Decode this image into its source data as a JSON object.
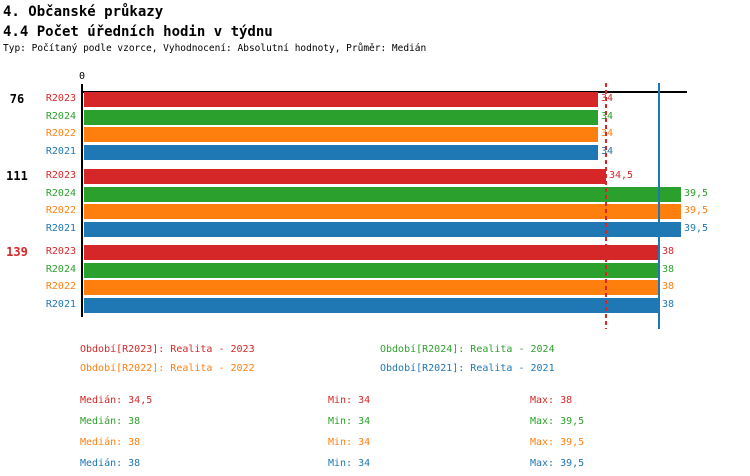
{
  "header": {
    "title1": "4. Občanské průkazy",
    "title2": "4.4 Počet úředních hodin v týdnu",
    "subtitle": "Typ: Počítaný podle vzorce, Vyhodnocení: Absolutní hodnoty, Průměr: Medián"
  },
  "colors": {
    "R2023": "#d62728",
    "R2024": "#2ca02c",
    "R2022": "#ff7f0e",
    "R2021": "#1f77b4",
    "axis": "#000000"
  },
  "chart_data": {
    "type": "bar",
    "orientation": "horizontal",
    "title": "4.4 Počet úředních hodin v týdnu",
    "xlabel": "",
    "ylabel": "",
    "xlim": [
      0,
      40
    ],
    "axis_zero_label": "0",
    "grid": false,
    "series_order": [
      "R2023",
      "R2024",
      "R2022",
      "R2021"
    ],
    "groups": [
      {
        "label": "76",
        "highlighted": false,
        "values": {
          "R2023": 34,
          "R2024": 34,
          "R2022": 34,
          "R2021": 34
        }
      },
      {
        "label": "111",
        "highlighted": false,
        "values": {
          "R2023": 34.5,
          "R2024": 39.5,
          "R2022": 39.5,
          "R2021": 39.5
        }
      },
      {
        "label": "139",
        "highlighted": true,
        "values": {
          "R2023": 38,
          "R2024": 38,
          "R2022": 38,
          "R2021": 38
        }
      }
    ],
    "median_lines": [
      {
        "series": "R2023",
        "value": 34.5,
        "style": "dashed"
      },
      {
        "series": "R2021",
        "value": 38,
        "style": "solid"
      }
    ]
  },
  "legend": {
    "items": [
      {
        "series": "R2023",
        "label": "Období[R2023]: Realita - 2023"
      },
      {
        "series": "R2024",
        "label": "Období[R2024]: Realita - 2024"
      },
      {
        "series": "R2022",
        "label": "Období[R2022]: Realita - 2022"
      },
      {
        "series": "R2021",
        "label": "Období[R2021]: Realita - 2021"
      }
    ]
  },
  "stats": {
    "rows": [
      {
        "series": "R2023",
        "median": "Medián: 34,5",
        "min": "Min: 34",
        "max": "Max: 38"
      },
      {
        "series": "R2024",
        "median": "Medián: 38",
        "min": "Min: 34",
        "max": "Max: 39,5"
      },
      {
        "series": "R2022",
        "median": "Medián: 38",
        "min": "Min: 34",
        "max": "Max: 39,5"
      },
      {
        "series": "R2021",
        "median": "Medián: 38",
        "min": "Min: 34",
        "max": "Max: 39,5"
      }
    ]
  }
}
